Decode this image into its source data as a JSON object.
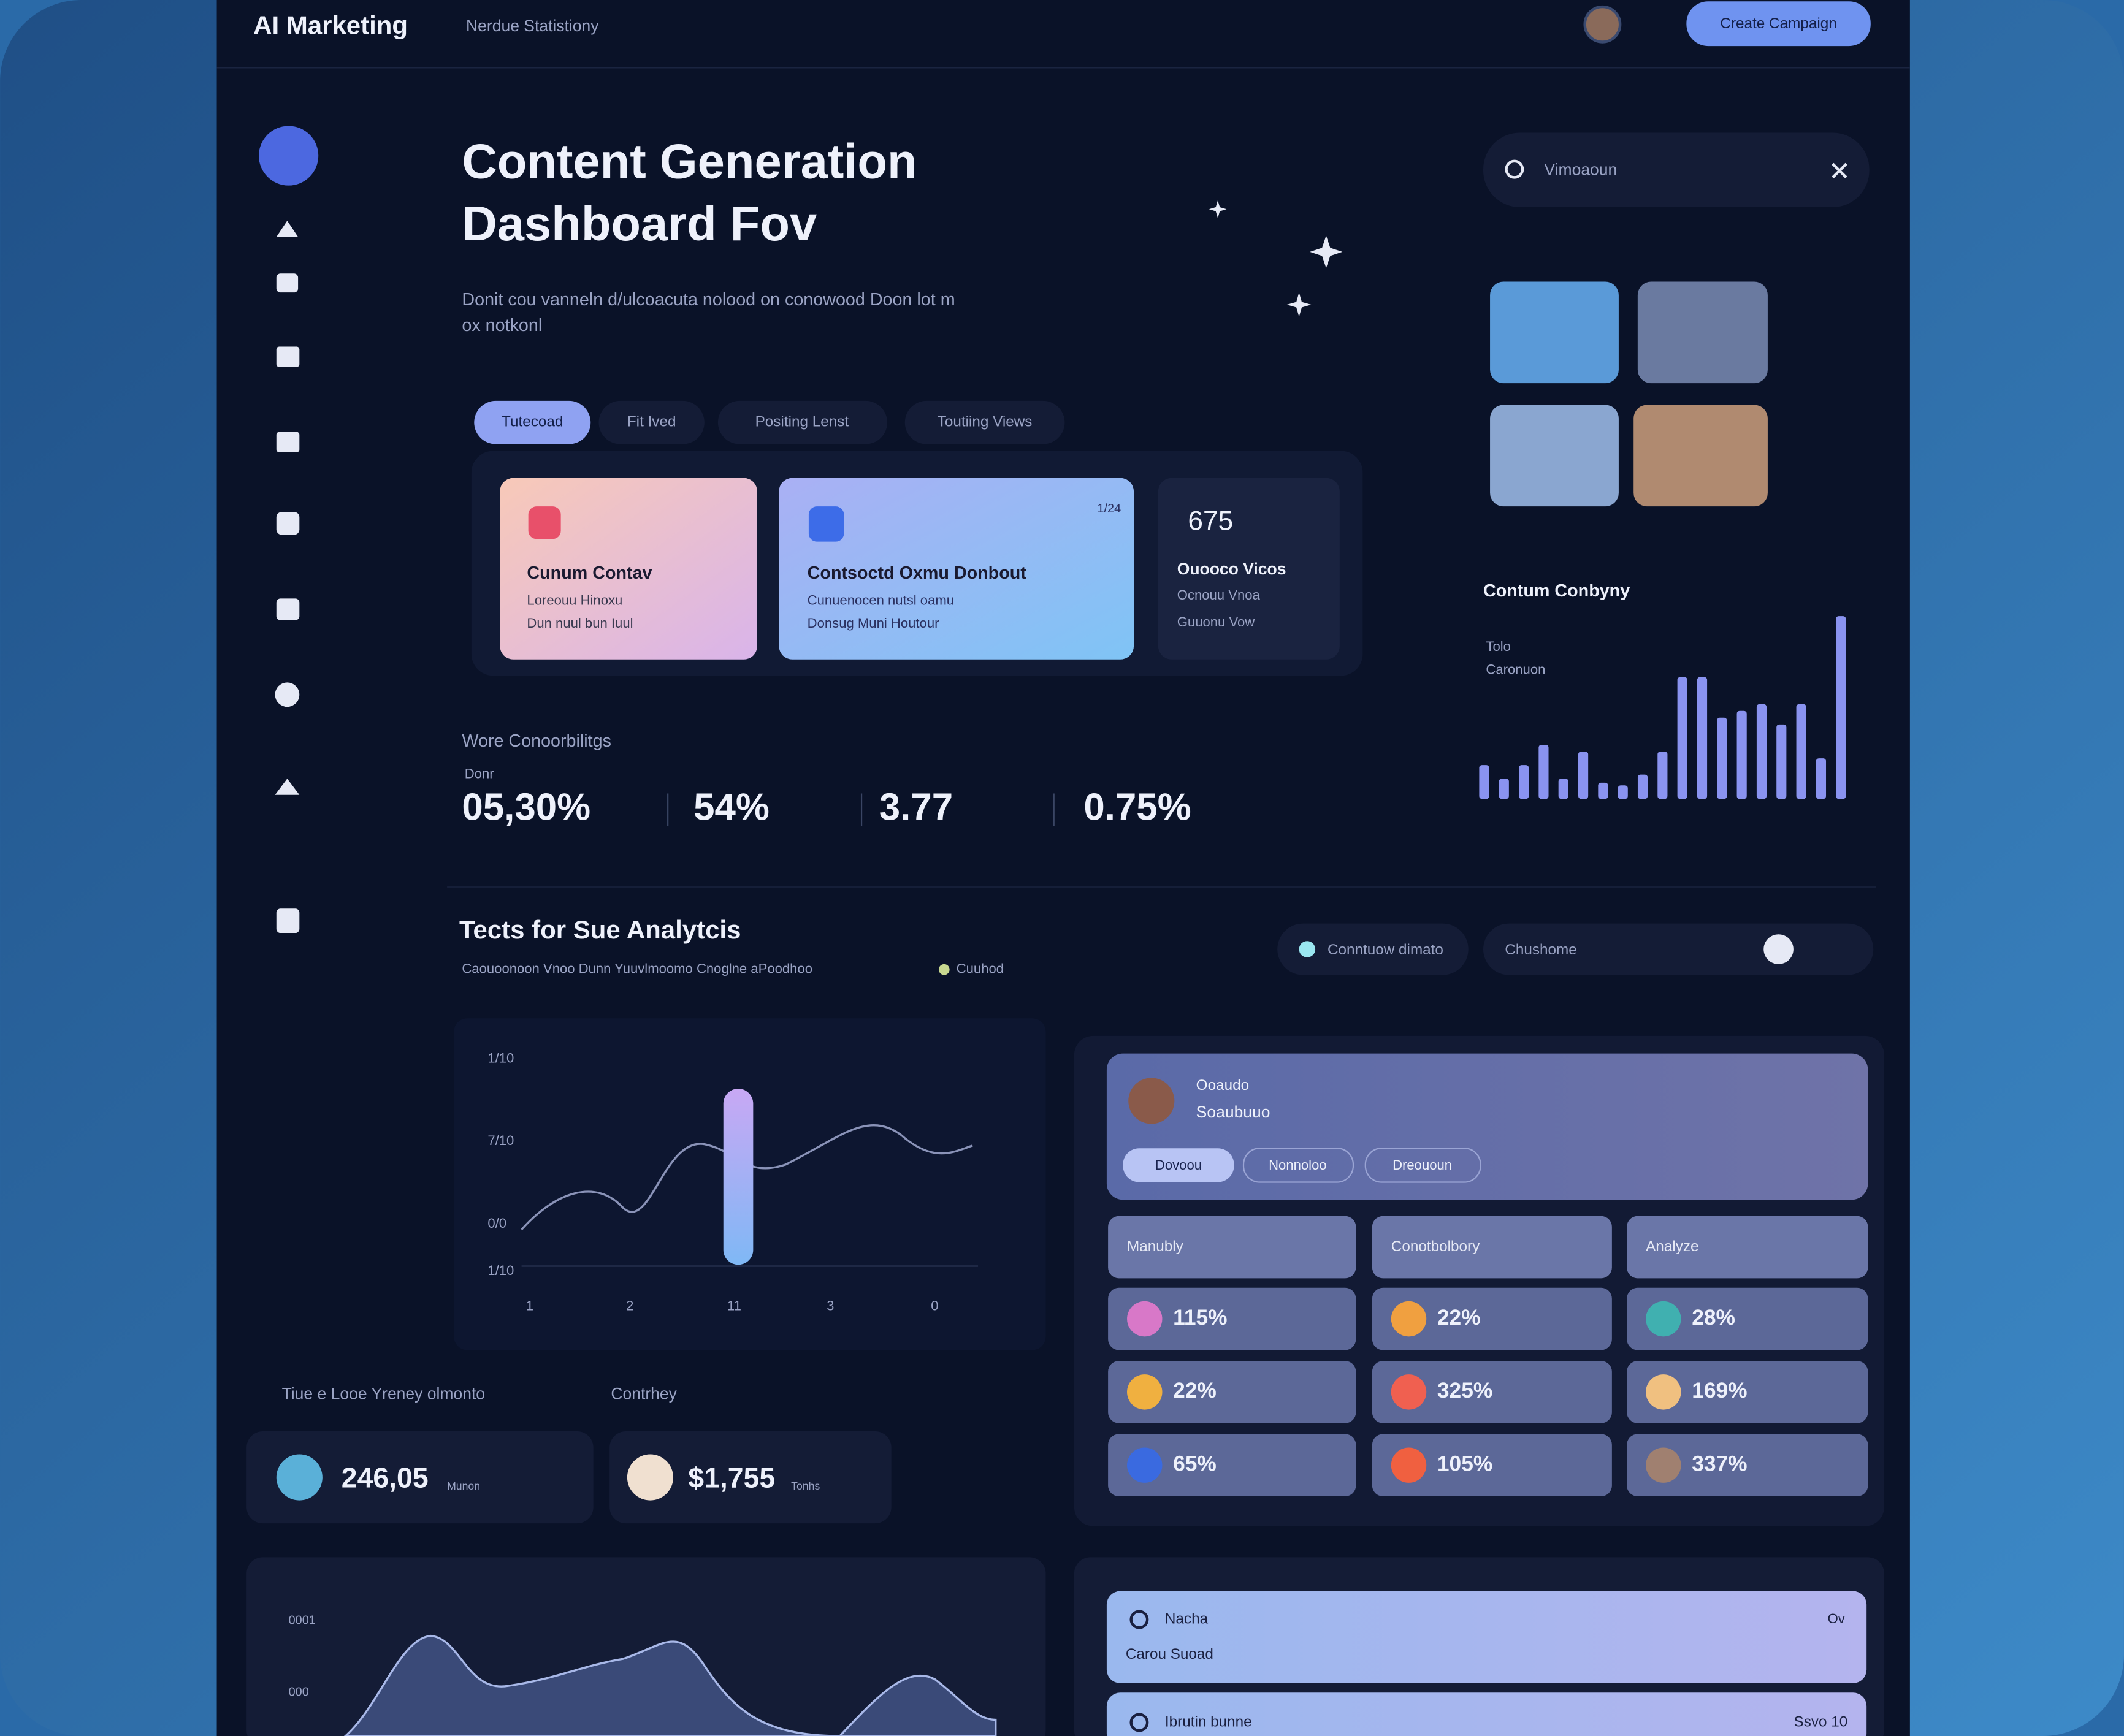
{
  "header": {
    "brand": "AI Marketing",
    "nav": "Nerdue Statistiony",
    "button": "Create Campaign"
  },
  "hero": {
    "title_lines": [
      "Content Generation",
      "Dashboard Fov"
    ],
    "subtitle_lines": [
      "Donit cou vanneln d/ulcoacuta nolood on conowood Doon lot m",
      "ox notkonl"
    ],
    "tabs": [
      "Tutecoad",
      "Fit Ived",
      "Positing Lenst",
      "Toutiing Views"
    ]
  },
  "cards": [
    {
      "title": "Cunum Contav",
      "line": "Loreouu Hinoxu",
      "line2": "Dun nuul bun Iuul"
    },
    {
      "title": "Contsoctd Oxmu Donbout",
      "line": "Cunuenocen nutsl oamu",
      "line2": "Donsug Muni Houtour",
      "badge": "1/24"
    },
    {
      "title": "Ouooco Vicos",
      "big": "675",
      "line": "Ocnouu Vnoa",
      "line2": "Guuonu Vow"
    }
  ],
  "metrics": {
    "label": "Wore Conoorbilitgs",
    "sublabel": "Donr",
    "values": [
      "05,30%",
      "54%",
      "3.77",
      "0.75%"
    ]
  },
  "search": {
    "text": "Vimoaoun"
  },
  "content_chart": {
    "title": "Contum Conbyny",
    "sub_lines": [
      "Tolo",
      "Caronuon"
    ],
    "values": [
      25,
      15,
      25,
      40,
      15,
      35,
      12,
      10,
      18,
      35,
      90,
      90,
      60,
      65,
      70,
      55,
      70,
      30,
      135
    ],
    "ylim": [
      0,
      140
    ],
    "color": "#8a93f0"
  },
  "analytics": {
    "title": "Tects for Sue Analytcis",
    "subtitle": "Caouoonoon Vnoo Dunn Yuuvlmoomo Cnoglne aPoodhoo",
    "tag": "Cuuhod",
    "filter": "Conntuow dimato",
    "field": "Chushome",
    "axis": [
      "1/10",
      "7/10",
      "0/0",
      "1/10"
    ],
    "xaxis": [
      "1",
      "2",
      "11",
      "3",
      "0"
    ]
  },
  "totals": {
    "label": "Tiue e Looe Yreney olmonto",
    "label2": "Contrhey",
    "items": [
      "246,05",
      "$1,755"
    ],
    "units": [
      "Munon",
      "Tonhs"
    ]
  },
  "panel": {
    "name": "Ooaudo",
    "sub": "Soaubuuo",
    "chips": [
      "Dovoou",
      "Nonnoloo",
      "Dreououn"
    ],
    "selects": [
      "Manubly",
      "Conotbolbory",
      "Analyze"
    ],
    "cells": [
      "115%",
      "22%",
      "28%",
      "22%",
      "325%",
      "169%",
      "65%",
      "105%",
      "337%"
    ]
  },
  "bottom": {
    "axis": [
      "0001",
      "000"
    ],
    "rows": [
      {
        "title": "Nacha",
        "sub": "Carou Suoad",
        "end": "Ov"
      },
      {
        "title": "Ibrutin bunne",
        "end": "Ssvo 10"
      }
    ]
  }
}
